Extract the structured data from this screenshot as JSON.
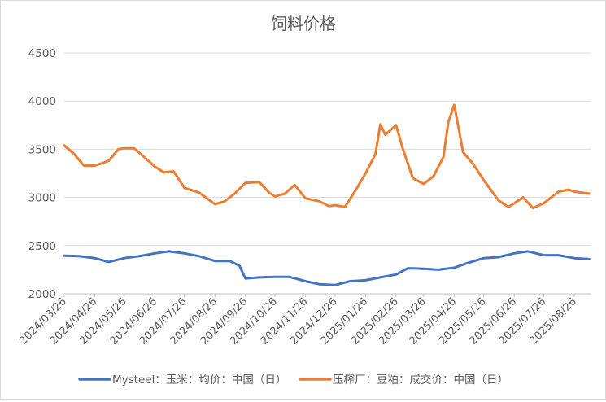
{
  "chart_data": {
    "type": "line",
    "title": "饲料价格",
    "xlabel": "",
    "ylabel": "",
    "ylim": [
      2000,
      4500
    ],
    "yticks": [
      2000,
      2500,
      3000,
      3500,
      4000,
      4500
    ],
    "x_tick_labels": [
      "2024/03/26",
      "2024/04/26",
      "2024/05/26",
      "2024/06/26",
      "2024/07/26",
      "2024/08/26",
      "2024/09/26",
      "2024/10/26",
      "2024/11/26",
      "2024/12/26",
      "2025/01/26",
      "2025/02/26",
      "2025/03/26",
      "2025/04/26",
      "2025/05/26",
      "2025/06/26",
      "2025/07/26",
      "2025/08/26"
    ],
    "grid": "horizontal",
    "legend_position": "bottom",
    "colors": {
      "series1": "#4472C4",
      "series2": "#ED7D31"
    },
    "series": [
      {
        "name": "Mysteel：玉米：均价：中国（日）",
        "x": [
          "2024/03/26",
          "2024/04/10",
          "2024/04/26",
          "2024/05/10",
          "2024/05/26",
          "2024/06/10",
          "2024/06/26",
          "2024/07/10",
          "2024/07/26",
          "2024/08/10",
          "2024/08/26",
          "2024/09/10",
          "2024/09/20",
          "2024/09/26",
          "2024/10/10",
          "2024/10/26",
          "2024/11/10",
          "2024/11/26",
          "2024/12/10",
          "2024/12/26",
          "2025/01/10",
          "2025/01/26",
          "2025/02/10",
          "2025/02/26",
          "2025/03/10",
          "2025/03/26",
          "2025/04/10",
          "2025/04/26",
          "2025/05/10",
          "2025/05/26",
          "2025/06/10",
          "2025/06/26",
          "2025/07/10",
          "2025/07/26",
          "2025/08/10",
          "2025/08/26",
          "2025/09/10"
        ],
        "values": [
          2395,
          2390,
          2370,
          2330,
          2370,
          2390,
          2420,
          2440,
          2420,
          2390,
          2340,
          2340,
          2290,
          2160,
          2170,
          2175,
          2175,
          2130,
          2100,
          2090,
          2130,
          2140,
          2170,
          2200,
          2265,
          2260,
          2250,
          2270,
          2320,
          2370,
          2380,
          2420,
          2440,
          2400,
          2400,
          2370,
          2360
        ]
      },
      {
        "name": "压榨厂：豆粕：成交价：中国（日）",
        "x": [
          "2024/03/26",
          "2024/04/05",
          "2024/04/15",
          "2024/04/26",
          "2024/05/05",
          "2024/05/10",
          "2024/05/20",
          "2024/05/26",
          "2024/06/05",
          "2024/06/15",
          "2024/06/26",
          "2024/07/05",
          "2024/07/15",
          "2024/07/26",
          "2024/08/10",
          "2024/08/26",
          "2024/09/05",
          "2024/09/15",
          "2024/09/26",
          "2024/10/10",
          "2024/10/20",
          "2024/10/26",
          "2024/11/05",
          "2024/11/15",
          "2024/11/26",
          "2024/12/10",
          "2024/12/20",
          "2024/12/26",
          "2025/01/05",
          "2025/01/15",
          "2025/01/26",
          "2025/02/05",
          "2025/02/10",
          "2025/02/15",
          "2025/02/26",
          "2025/03/05",
          "2025/03/15",
          "2025/03/26",
          "2025/04/05",
          "2025/04/10",
          "2025/04/15",
          "2025/04/20",
          "2025/04/26",
          "2025/05/05",
          "2025/05/15",
          "2025/05/26",
          "2025/06/10",
          "2025/06/20",
          "2025/06/26",
          "2025/07/05",
          "2025/07/15",
          "2025/07/26",
          "2025/08/10",
          "2025/08/20",
          "2025/08/26",
          "2025/09/10"
        ],
        "values": [
          3540,
          3450,
          3330,
          3330,
          3360,
          3380,
          3500,
          3510,
          3510,
          3420,
          3320,
          3260,
          3270,
          3100,
          3050,
          2930,
          2960,
          3040,
          3150,
          3160,
          3050,
          3010,
          3040,
          3130,
          2990,
          2960,
          2910,
          2920,
          2900,
          3060,
          3250,
          3450,
          3760,
          3650,
          3750,
          3500,
          3200,
          3140,
          3220,
          3320,
          3420,
          3780,
          3960,
          3470,
          3350,
          3180,
          2970,
          2900,
          2940,
          3000,
          2890,
          2940,
          3060,
          3080,
          3060,
          3040
        ]
      }
    ]
  }
}
